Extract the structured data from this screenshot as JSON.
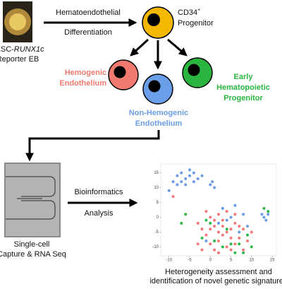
{
  "labels": {
    "eb_line1_a": "hESC-",
    "eb_line1_b": "RUNX1c",
    "eb_line2": "Reporter EB",
    "diff_line1": "Hematoendothelial",
    "diff_line2": "Differentiation",
    "cd34": "CD34",
    "cd34_sup": "+",
    "progenitor": "Progenitor",
    "hemogenic_1": "Hemogenic",
    "hemogenic_2": "Endothelium",
    "early_1": "Early",
    "early_2": "Hematopoietic",
    "early_3": "Progenitor",
    "nonhemo_1": "Non-Hemogenic",
    "nonhemo_2": "Endothelium",
    "capture_1": "Single-cell",
    "capture_2": "Capture & RNA Seq",
    "bio_1": "Bioinformatics",
    "bio_2": "Analysis",
    "result_1": "Heterogeneity assessment and",
    "result_2": "identification of novel genetic signatures"
  },
  "chart_data": {
    "type": "scatter",
    "xlim": [
      -12,
      16
    ],
    "ylim": [
      -13,
      18
    ],
    "xticks": [
      -10,
      -5,
      0,
      5,
      10,
      15
    ],
    "yticks": [
      15,
      10,
      5,
      0,
      -5,
      -10
    ],
    "series": [
      {
        "color": "#6b9be8",
        "x": [
          -10,
          -9,
          -8,
          -7,
          -6,
          -5,
          -4,
          -3,
          -6,
          -8,
          -4,
          -2,
          -5,
          -7,
          0,
          1,
          0.5,
          13,
          14,
          13.5,
          12.5,
          3,
          5,
          8,
          2,
          6,
          9,
          -1,
          4,
          7
        ],
        "y": [
          9,
          12,
          14,
          15,
          13,
          14,
          15,
          13,
          11,
          11,
          12,
          14,
          16,
          12,
          11,
          10,
          12,
          0,
          1,
          -1,
          1,
          3,
          0,
          1,
          -2,
          4,
          -3,
          -8,
          -1,
          -5
        ]
      },
      {
        "color": "#f07a7a",
        "x": [
          -1,
          0,
          1,
          2,
          3,
          4,
          5,
          6,
          -2,
          -1,
          0,
          1,
          2,
          3,
          4,
          5,
          6,
          7,
          8,
          9,
          -3,
          -2,
          1,
          2,
          3,
          4,
          -3,
          7,
          0,
          8,
          5,
          10,
          -9,
          6,
          2
        ],
        "y": [
          2,
          0,
          -1,
          1,
          -3,
          -5,
          -7,
          -2,
          -4,
          -6,
          -9,
          -11,
          -8,
          -6,
          -10,
          -4,
          -9,
          -7,
          -11,
          -8,
          -9,
          -11,
          -3,
          -12,
          -1,
          2,
          -2,
          -3,
          -4,
          -4,
          -11,
          -5,
          7,
          1,
          -5
        ]
      },
      {
        "color": "#2db84a",
        "x": [
          -6,
          13,
          14,
          -2,
          1,
          3,
          5,
          7,
          9,
          10,
          -1,
          4,
          6,
          8,
          0,
          -7
        ],
        "y": [
          1,
          3,
          2,
          -7,
          -8,
          -10,
          -9,
          -9,
          -6,
          -10,
          -1,
          -4,
          -12,
          -12,
          -2,
          -2
        ]
      }
    ]
  }
}
